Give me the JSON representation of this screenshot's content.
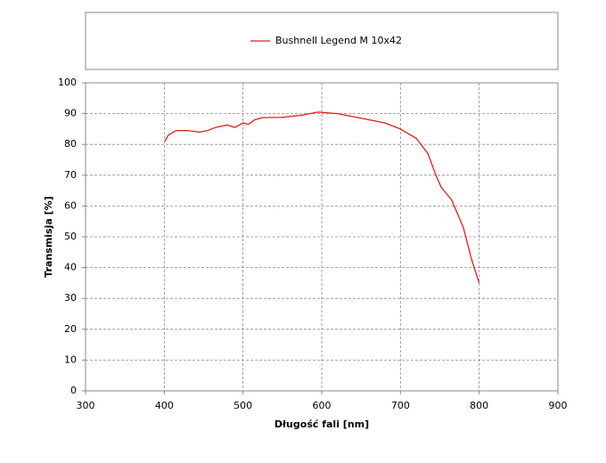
{
  "chart_data": {
    "type": "line",
    "xlabel": "Długość fali [nm]",
    "ylabel": "Transmisja [%]",
    "x": [
      401,
      405,
      415,
      430,
      445,
      455,
      465,
      480,
      490,
      500,
      507,
      515,
      525,
      550,
      575,
      595,
      620,
      650,
      680,
      700,
      720,
      735,
      745,
      752,
      765,
      780,
      790,
      800
    ],
    "series": [
      {
        "name": "Bushnell Legend M 10x42",
        "color": "#e0201b",
        "values": [
          81,
          83,
          84.5,
          84.5,
          84,
          84.5,
          85.5,
          86.3,
          85.5,
          87,
          86.5,
          88,
          88.7,
          88.8,
          89.5,
          90.5,
          90,
          88.5,
          87,
          85,
          82,
          77,
          70,
          66,
          62,
          53,
          43,
          35
        ]
      }
    ],
    "xlim": [
      300,
      900
    ],
    "xticks": [
      300,
      400,
      500,
      600,
      700,
      800,
      900
    ],
    "ylim": [
      0,
      100
    ],
    "yticks": [
      0,
      10,
      20,
      30,
      40,
      50,
      60,
      70,
      80,
      90,
      100
    ],
    "grid": true,
    "legend": "top"
  }
}
